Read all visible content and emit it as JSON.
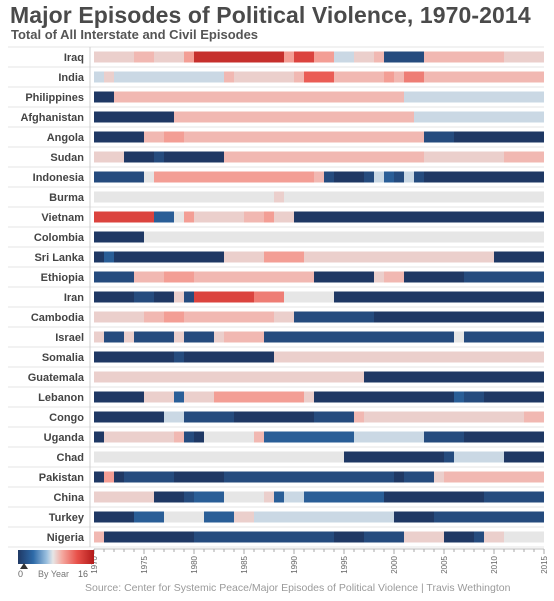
{
  "title": "Major Episodes of Political Violence, 1970-2014",
  "subtitle": "Total of All Interstate and Civil Episodes",
  "source": "Source: Center for Systemic Peace/Major Episodes of Political Violence | Travis Wethington",
  "legend": {
    "min": "0",
    "label": "By Year",
    "max": "16"
  },
  "colors": {
    "scale": [
      "#1f3864",
      "#2e6aa8",
      "#9cc1e0",
      "#e6e6e6",
      "#f4a9a0",
      "#e8514a",
      "#b21a1a"
    ]
  },
  "chart_data": {
    "type": "heatmap",
    "x_label": "Year",
    "x_range": [
      1970,
      2015
    ],
    "x_ticks": [
      1970,
      1975,
      1980,
      1985,
      1990,
      1995,
      2000,
      2005,
      2010,
      2015
    ],
    "color_min": 0,
    "color_max": 16,
    "rows": [
      {
        "country": "Iraq",
        "segments": [
          [
            1970,
            1974,
            9
          ],
          [
            1974,
            1976,
            10
          ],
          [
            1976,
            1979,
            9
          ],
          [
            1979,
            1980,
            11
          ],
          [
            1980,
            1989,
            15
          ],
          [
            1989,
            1990,
            11
          ],
          [
            1990,
            1992,
            14
          ],
          [
            1992,
            1994,
            11
          ],
          [
            1994,
            1996,
            7
          ],
          [
            1996,
            1998,
            9
          ],
          [
            1998,
            1999,
            10
          ],
          [
            1999,
            2003,
            1
          ],
          [
            2003,
            2011,
            10
          ],
          [
            2011,
            2015,
            9
          ]
        ]
      },
      {
        "country": "India",
        "segments": [
          [
            1970,
            1971,
            7
          ],
          [
            1971,
            1972,
            9
          ],
          [
            1972,
            1983,
            7
          ],
          [
            1983,
            1984,
            10
          ],
          [
            1984,
            1990,
            9
          ],
          [
            1990,
            1991,
            10
          ],
          [
            1991,
            1994,
            13
          ],
          [
            1994,
            1999,
            10
          ],
          [
            1999,
            2000,
            11
          ],
          [
            2000,
            2001,
            10
          ],
          [
            2001,
            2003,
            12
          ],
          [
            2003,
            2015,
            10
          ]
        ]
      },
      {
        "country": "Philippines",
        "segments": [
          [
            1970,
            1972,
            0
          ],
          [
            1972,
            2001,
            10
          ],
          [
            2001,
            2015,
            7
          ]
        ]
      },
      {
        "country": "Afghanistan",
        "segments": [
          [
            1970,
            1978,
            0
          ],
          [
            1978,
            2002,
            10
          ],
          [
            2002,
            2015,
            7
          ]
        ]
      },
      {
        "country": "Angola",
        "segments": [
          [
            1970,
            1975,
            0
          ],
          [
            1975,
            1977,
            10
          ],
          [
            1977,
            1979,
            11
          ],
          [
            1979,
            2003,
            10
          ],
          [
            2003,
            2006,
            1
          ],
          [
            2006,
            2015,
            0
          ]
        ]
      },
      {
        "country": "Sudan",
        "segments": [
          [
            1970,
            1973,
            9
          ],
          [
            1973,
            1976,
            0
          ],
          [
            1976,
            1977,
            1
          ],
          [
            1977,
            1983,
            0
          ],
          [
            1983,
            2003,
            10
          ],
          [
            2003,
            2011,
            9
          ],
          [
            2011,
            2015,
            10
          ]
        ]
      },
      {
        "country": "Indonesia",
        "segments": [
          [
            1970,
            1975,
            1
          ],
          [
            1975,
            1976,
            8
          ],
          [
            1976,
            1992,
            11
          ],
          [
            1992,
            1993,
            10
          ],
          [
            1993,
            1994,
            1
          ],
          [
            1994,
            1997,
            0
          ],
          [
            1997,
            1998,
            1
          ],
          [
            1998,
            1999,
            7
          ],
          [
            1999,
            2000,
            2
          ],
          [
            2000,
            2001,
            1
          ],
          [
            2001,
            2002,
            7
          ],
          [
            2002,
            2003,
            1
          ],
          [
            2003,
            2006,
            0
          ],
          [
            2006,
            2015,
            0
          ]
        ]
      },
      {
        "country": "Burma",
        "segments": [
          [
            1970,
            1988,
            8
          ],
          [
            1988,
            1989,
            9
          ],
          [
            1989,
            2015,
            8
          ]
        ]
      },
      {
        "country": "Vietnam",
        "segments": [
          [
            1970,
            1976,
            14
          ],
          [
            1976,
            1978,
            2
          ],
          [
            1978,
            1979,
            8
          ],
          [
            1979,
            1980,
            11
          ],
          [
            1980,
            1985,
            9
          ],
          [
            1985,
            1987,
            10
          ],
          [
            1987,
            1988,
            11
          ],
          [
            1988,
            1990,
            9
          ],
          [
            1990,
            2015,
            0
          ]
        ]
      },
      {
        "country": "Colombia",
        "segments": [
          [
            1970,
            1975,
            0
          ],
          [
            1975,
            2015,
            8
          ]
        ]
      },
      {
        "country": "Sri Lanka",
        "segments": [
          [
            1970,
            1971,
            0
          ],
          [
            1971,
            1972,
            2
          ],
          [
            1972,
            1983,
            0
          ],
          [
            1983,
            1987,
            9
          ],
          [
            1987,
            1991,
            11
          ],
          [
            1991,
            2010,
            9
          ],
          [
            2010,
            2015,
            0
          ]
        ]
      },
      {
        "country": "Ethiopia",
        "segments": [
          [
            1970,
            1974,
            1
          ],
          [
            1974,
            1977,
            10
          ],
          [
            1977,
            1980,
            11
          ],
          [
            1980,
            1992,
            10
          ],
          [
            1992,
            1998,
            0
          ],
          [
            1998,
            1999,
            9
          ],
          [
            1999,
            2001,
            10
          ],
          [
            2001,
            2007,
            0
          ],
          [
            2007,
            2015,
            1
          ]
        ]
      },
      {
        "country": "Iran",
        "segments": [
          [
            1970,
            1974,
            0
          ],
          [
            1974,
            1976,
            1
          ],
          [
            1976,
            1978,
            0
          ],
          [
            1978,
            1979,
            9
          ],
          [
            1979,
            1980,
            1
          ],
          [
            1980,
            1986,
            14
          ],
          [
            1986,
            1989,
            12
          ],
          [
            1989,
            1994,
            8
          ],
          [
            1994,
            2015,
            0
          ]
        ]
      },
      {
        "country": "Cambodia",
        "segments": [
          [
            1970,
            1975,
            9
          ],
          [
            1975,
            1977,
            10
          ],
          [
            1977,
            1979,
            11
          ],
          [
            1979,
            1988,
            10
          ],
          [
            1988,
            1990,
            9
          ],
          [
            1990,
            1998,
            1
          ],
          [
            1998,
            2015,
            0
          ]
        ]
      },
      {
        "country": "Israel",
        "segments": [
          [
            1970,
            1971,
            9
          ],
          [
            1971,
            1973,
            1
          ],
          [
            1973,
            1974,
            9
          ],
          [
            1974,
            1978,
            1
          ],
          [
            1978,
            1979,
            9
          ],
          [
            1979,
            1982,
            1
          ],
          [
            1982,
            1983,
            9
          ],
          [
            1983,
            1987,
            10
          ],
          [
            1987,
            2006,
            1
          ],
          [
            2006,
            2007,
            8
          ],
          [
            2007,
            2015,
            1
          ]
        ]
      },
      {
        "country": "Somalia",
        "segments": [
          [
            1970,
            1978,
            0
          ],
          [
            1978,
            1979,
            1
          ],
          [
            1979,
            1988,
            0
          ],
          [
            1988,
            2015,
            9
          ]
        ]
      },
      {
        "country": "Guatemala",
        "segments": [
          [
            1970,
            1997,
            9
          ],
          [
            1997,
            2015,
            0
          ]
        ]
      },
      {
        "country": "Lebanon",
        "segments": [
          [
            1970,
            1975,
            0
          ],
          [
            1975,
            1978,
            9
          ],
          [
            1978,
            1979,
            2
          ],
          [
            1979,
            1982,
            9
          ],
          [
            1982,
            1991,
            11
          ],
          [
            1991,
            1992,
            9
          ],
          [
            1992,
            2006,
            0
          ],
          [
            2006,
            2007,
            2
          ],
          [
            2007,
            2009,
            1
          ],
          [
            2009,
            2015,
            0
          ]
        ]
      },
      {
        "country": "Congo",
        "segments": [
          [
            1970,
            1977,
            0
          ],
          [
            1977,
            1979,
            7
          ],
          [
            1979,
            1984,
            1
          ],
          [
            1984,
            1985,
            0
          ],
          [
            1985,
            1992,
            0
          ],
          [
            1992,
            1996,
            1
          ],
          [
            1996,
            1997,
            10
          ],
          [
            1997,
            2013,
            9
          ],
          [
            2013,
            2015,
            10
          ]
        ]
      },
      {
        "country": "Uganda",
        "segments": [
          [
            1970,
            1971,
            0
          ],
          [
            1971,
            1978,
            9
          ],
          [
            1978,
            1979,
            10
          ],
          [
            1979,
            1980,
            1
          ],
          [
            1980,
            1981,
            0
          ],
          [
            1981,
            1986,
            8
          ],
          [
            1986,
            1987,
            10
          ],
          [
            1987,
            1996,
            2
          ],
          [
            1996,
            2003,
            7
          ],
          [
            2003,
            2007,
            1
          ],
          [
            2007,
            2015,
            0
          ]
        ]
      },
      {
        "country": "Chad",
        "segments": [
          [
            1970,
            1995,
            8
          ],
          [
            1995,
            2005,
            0
          ],
          [
            2005,
            2006,
            1
          ],
          [
            2006,
            2011,
            7
          ],
          [
            2011,
            2015,
            0
          ]
        ]
      },
      {
        "country": "Pakistan",
        "segments": [
          [
            1970,
            1971,
            0
          ],
          [
            1971,
            1972,
            11
          ],
          [
            1972,
            1973,
            0
          ],
          [
            1973,
            1978,
            1
          ],
          [
            1978,
            1983,
            0
          ],
          [
            1983,
            2000,
            1
          ],
          [
            2000,
            2001,
            0
          ],
          [
            2001,
            2004,
            1
          ],
          [
            2004,
            2005,
            9
          ],
          [
            2005,
            2015,
            10
          ]
        ]
      },
      {
        "country": "China",
        "segments": [
          [
            1970,
            1976,
            9
          ],
          [
            1976,
            1979,
            0
          ],
          [
            1979,
            1980,
            1
          ],
          [
            1980,
            1983,
            2
          ],
          [
            1983,
            1987,
            8
          ],
          [
            1987,
            1988,
            9
          ],
          [
            1988,
            1989,
            2
          ],
          [
            1989,
            1991,
            7
          ],
          [
            1991,
            1999,
            2
          ],
          [
            1999,
            2009,
            0
          ],
          [
            2009,
            2015,
            1
          ]
        ]
      },
      {
        "country": "Turkey",
        "segments": [
          [
            1970,
            1974,
            0
          ],
          [
            1974,
            1977,
            2
          ],
          [
            1977,
            1981,
            8
          ],
          [
            1981,
            1984,
            2
          ],
          [
            1984,
            1986,
            9
          ],
          [
            1986,
            2000,
            7
          ],
          [
            2000,
            2004,
            0
          ],
          [
            2004,
            2015,
            1
          ]
        ]
      },
      {
        "country": "Nigeria",
        "segments": [
          [
            1970,
            1971,
            10
          ],
          [
            1971,
            1980,
            0
          ],
          [
            1980,
            1994,
            1
          ],
          [
            1994,
            1997,
            0
          ],
          [
            1997,
            2001,
            1
          ],
          [
            2001,
            2005,
            9
          ],
          [
            2005,
            2008,
            0
          ],
          [
            2008,
            2009,
            1
          ],
          [
            2009,
            2011,
            9
          ],
          [
            2011,
            2015,
            8
          ]
        ]
      }
    ]
  }
}
